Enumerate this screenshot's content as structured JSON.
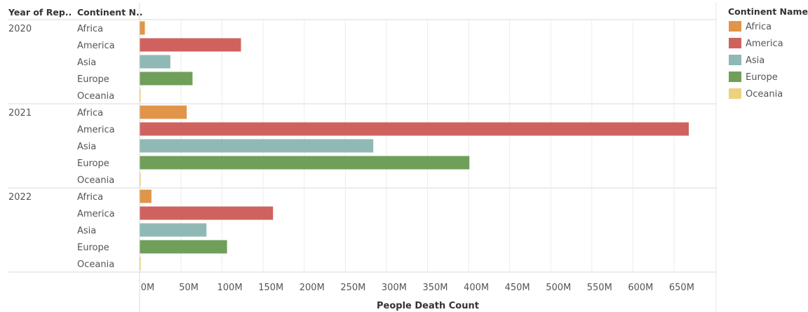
{
  "chart_data": {
    "type": "bar",
    "orientation": "horizontal",
    "row_headers": [
      "Year of Rep..",
      "Continent N.."
    ],
    "xlabel": "People Death Count",
    "xlim": [
      0,
      700000000
    ],
    "x_ticks": [
      0,
      50000000,
      100000000,
      150000000,
      200000000,
      250000000,
      300000000,
      350000000,
      400000000,
      450000000,
      500000000,
      550000000,
      600000000,
      650000000
    ],
    "x_tick_labels": [
      "0M",
      "50M",
      "100M",
      "150M",
      "200M",
      "250M",
      "300M",
      "350M",
      "400M",
      "450M",
      "500M",
      "550M",
      "600M",
      "650M"
    ],
    "grid": true,
    "legend": {
      "title": "Continent Name",
      "position": "right",
      "items": [
        {
          "name": "Africa",
          "color": "#e0954b"
        },
        {
          "name": "America",
          "color": "#cf625e"
        },
        {
          "name": "Asia",
          "color": "#8fb9b5"
        },
        {
          "name": "Europe",
          "color": "#6f9f58"
        },
        {
          "name": "Oceania",
          "color": "#ecd17f"
        }
      ]
    },
    "groups": [
      {
        "year": "2020",
        "bars": [
          {
            "continent": "Africa",
            "value": 6000000
          },
          {
            "continent": "America",
            "value": 123000000
          },
          {
            "continent": "Asia",
            "value": 37000000
          },
          {
            "continent": "Europe",
            "value": 64000000
          },
          {
            "continent": "Oceania",
            "value": 300000
          }
        ]
      },
      {
        "year": "2021",
        "bars": [
          {
            "continent": "Africa",
            "value": 57000000
          },
          {
            "continent": "America",
            "value": 668000000
          },
          {
            "continent": "Asia",
            "value": 284000000
          },
          {
            "continent": "Europe",
            "value": 401000000
          },
          {
            "continent": "Oceania",
            "value": 500000
          }
        ]
      },
      {
        "year": "2022",
        "bars": [
          {
            "continent": "Africa",
            "value": 14000000
          },
          {
            "continent": "America",
            "value": 162000000
          },
          {
            "continent": "Asia",
            "value": 81000000
          },
          {
            "continent": "Europe",
            "value": 106000000
          },
          {
            "continent": "Oceania",
            "value": 400000
          }
        ]
      }
    ]
  }
}
